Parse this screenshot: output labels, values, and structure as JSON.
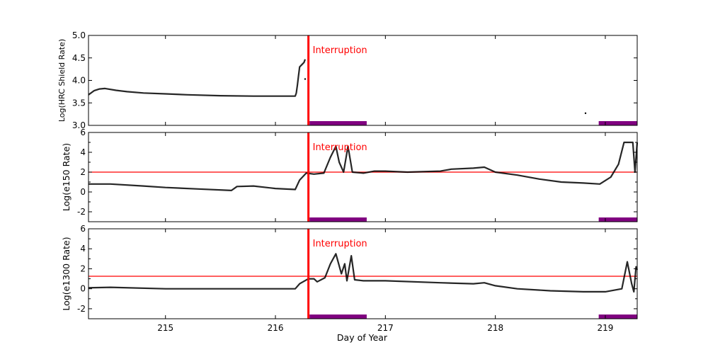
{
  "chart_data": [
    {
      "type": "scatter",
      "ylabel": "Log(HRC Shield Rate)",
      "xlim": [
        214.3,
        219.29
      ],
      "ylim": [
        3.0,
        5.0
      ],
      "yticks": [
        "3.0",
        "3.5",
        "4.0",
        "4.5",
        "5.0"
      ],
      "ytick_values": [
        3.0,
        3.5,
        4.0,
        4.5,
        5.0
      ],
      "threshold": null,
      "annotation": "Interruption",
      "interruption_x": 216.3,
      "series": [
        {
          "x": [
            214.3,
            214.35,
            214.4,
            214.45,
            214.55,
            214.65,
            214.8,
            215.0,
            215.2,
            215.5,
            215.8,
            216.0,
            216.18,
            216.19,
            216.2,
            216.21,
            216.22,
            216.24,
            216.26,
            216.27
          ],
          "y": [
            3.68,
            3.77,
            3.81,
            3.82,
            3.78,
            3.75,
            3.72,
            3.7,
            3.68,
            3.66,
            3.65,
            3.65,
            3.65,
            3.72,
            3.9,
            4.1,
            4.3,
            4.35,
            4.4,
            4.47
          ]
        }
      ],
      "points": [
        {
          "x": 216.27,
          "y": 4.03
        },
        {
          "x": 218.82,
          "y": 3.27
        }
      ],
      "bars": [
        [
          216.31,
          216.83
        ],
        [
          218.94,
          219.29
        ]
      ]
    },
    {
      "type": "line",
      "ylabel": "Log(e150  Rate)",
      "xlim": [
        214.3,
        219.29
      ],
      "ylim": [
        -3,
        6
      ],
      "yticks": [
        "-2",
        "0",
        "2",
        "4",
        "6"
      ],
      "ytick_values": [
        -2,
        0,
        2,
        4,
        6
      ],
      "threshold": 2.0,
      "annotation": "Interruption",
      "interruption_x": 216.3,
      "series": [
        {
          "x": [
            214.3,
            214.5,
            214.8,
            215.0,
            215.3,
            215.6,
            215.65,
            215.8,
            216.0,
            216.18,
            216.22,
            216.28,
            216.35,
            216.44,
            216.5,
            216.55,
            216.58,
            216.62,
            216.66,
            216.7,
            216.8,
            216.9,
            217.0,
            217.2,
            217.5,
            217.6,
            217.8,
            217.9,
            218.0,
            218.2,
            218.4,
            218.6,
            218.8,
            218.95,
            219.05,
            219.12,
            219.17,
            219.25,
            219.27,
            219.29
          ],
          "y": [
            0.8,
            0.8,
            0.6,
            0.45,
            0.3,
            0.15,
            0.55,
            0.6,
            0.35,
            0.25,
            1.2,
            1.9,
            1.8,
            1.9,
            3.5,
            4.6,
            3.0,
            2.0,
            4.6,
            2.0,
            1.9,
            2.1,
            2.1,
            2.0,
            2.1,
            2.3,
            2.4,
            2.5,
            2.0,
            1.7,
            1.3,
            1.0,
            0.9,
            0.8,
            1.5,
            2.8,
            5.0,
            5.0,
            2.0,
            5.0
          ]
        }
      ],
      "bars": [
        [
          216.31,
          216.83
        ],
        [
          218.94,
          219.29
        ]
      ]
    },
    {
      "type": "line",
      "ylabel": "Log(e1300 Rate)",
      "xlabel": "Day of Year",
      "xlim": [
        214.3,
        219.29
      ],
      "ylim": [
        -3,
        6
      ],
      "yticks": [
        "-2",
        "0",
        "2",
        "4",
        "6"
      ],
      "ytick_values": [
        -2,
        0,
        2,
        4,
        6
      ],
      "xticks": [
        "215",
        "216",
        "217",
        "218",
        "219"
      ],
      "xtick_values": [
        215,
        216,
        217,
        218,
        219
      ],
      "threshold": 1.25,
      "annotation": "Interruption",
      "interruption_x": 216.3,
      "series": [
        {
          "x": [
            214.3,
            214.5,
            215.0,
            215.5,
            216.0,
            216.18,
            216.22,
            216.3,
            216.35,
            216.38,
            216.45,
            216.5,
            216.55,
            216.6,
            216.63,
            216.65,
            216.69,
            216.72,
            216.8,
            217.0,
            217.5,
            217.8,
            217.9,
            218.0,
            218.2,
            218.5,
            218.8,
            219.0,
            219.15,
            219.2,
            219.24,
            219.26,
            219.28,
            219.29
          ],
          "y": [
            0.1,
            0.15,
            0.0,
            0.0,
            0.0,
            0.0,
            0.5,
            1.0,
            1.0,
            0.7,
            1.1,
            2.5,
            3.5,
            1.5,
            2.5,
            0.8,
            3.3,
            0.9,
            0.8,
            0.8,
            0.6,
            0.5,
            0.6,
            0.3,
            0.0,
            -0.2,
            -0.3,
            -0.3,
            0.0,
            2.7,
            0.5,
            -0.3,
            2.2,
            1.9
          ]
        }
      ],
      "bars": [
        [
          216.31,
          216.83
        ],
        [
          218.94,
          219.29
        ]
      ]
    }
  ],
  "colors": {
    "data": "#000000",
    "interruption": "#ff0000",
    "threshold": "#ff0000",
    "bar": "#800080"
  }
}
